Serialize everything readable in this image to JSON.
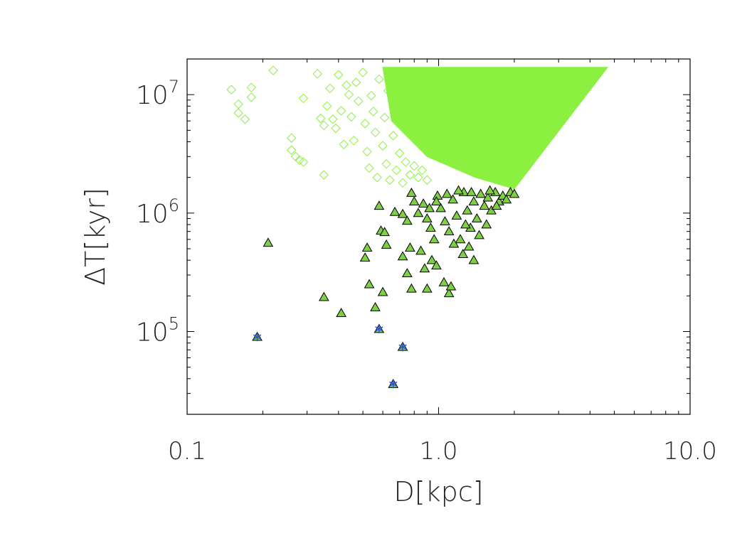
{
  "chart_data": {
    "type": "scatter",
    "title": "",
    "xlabel": "D[kpc]",
    "ylabel": "ΔT[kyr]",
    "xscale": "log",
    "yscale": "log",
    "xlim": [
      0.1,
      10.0
    ],
    "ylim": [
      20000,
      20000000
    ],
    "grid": false,
    "x_ticks": [
      {
        "value": 0.1,
        "label": "0.1"
      },
      {
        "value": 1.0,
        "label": "1.0"
      },
      {
        "value": 10.0,
        "label": "10.0"
      }
    ],
    "y_ticks": [
      {
        "value": 100000,
        "base": "10",
        "exp": "5"
      },
      {
        "value": 1000000,
        "base": "10",
        "exp": "6"
      },
      {
        "value": 10000000,
        "base": "10",
        "exp": "7"
      }
    ],
    "colors": {
      "diamond": "#8cf040",
      "triangle_fill": "#7fcf45",
      "triangle_edge": "#000000",
      "star": "#3050e0"
    },
    "dense_region": {
      "description_note": "solid band of overlapping green diamonds",
      "vertices": [
        [
          0.6,
          17000000
        ],
        [
          4.7,
          17000000
        ],
        [
          2.0,
          1600000
        ],
        [
          1.4,
          2000000
        ],
        [
          0.9,
          3000000
        ],
        [
          0.65,
          6000000
        ]
      ]
    },
    "series": [
      {
        "marker": "diamond",
        "points": [
          [
            0.15,
            11000000
          ],
          [
            0.16,
            8300000
          ],
          [
            0.16,
            7000000
          ],
          [
            0.17,
            6200000
          ],
          [
            0.18,
            9500000
          ],
          [
            0.18,
            11500000
          ],
          [
            0.22,
            16000000
          ],
          [
            0.26,
            4300000
          ],
          [
            0.26,
            3400000
          ],
          [
            0.27,
            3000000
          ],
          [
            0.28,
            2800000
          ],
          [
            0.29,
            2700000
          ],
          [
            0.29,
            9300000
          ],
          [
            0.33,
            15000000
          ],
          [
            0.34,
            6300000
          ],
          [
            0.35,
            5500000
          ],
          [
            0.35,
            2100000
          ],
          [
            0.36,
            8000000
          ],
          [
            0.37,
            11300000
          ],
          [
            0.38,
            6200000
          ],
          [
            0.39,
            5200000
          ],
          [
            0.4,
            14700000
          ],
          [
            0.41,
            7300000
          ],
          [
            0.42,
            3800000
          ],
          [
            0.43,
            12000000
          ],
          [
            0.44,
            10000000
          ],
          [
            0.45,
            6500000
          ],
          [
            0.46,
            4100000
          ],
          [
            0.47,
            12700000
          ],
          [
            0.48,
            8800000
          ],
          [
            0.5,
            15400000
          ],
          [
            0.51,
            5700000
          ],
          [
            0.52,
            3300000
          ],
          [
            0.53,
            2400000
          ],
          [
            0.54,
            9800000
          ],
          [
            0.55,
            7200000
          ],
          [
            0.56,
            4800000
          ],
          [
            0.57,
            2000000
          ],
          [
            0.58,
            13500000
          ],
          [
            0.6,
            3700000
          ],
          [
            0.61,
            6400000
          ],
          [
            0.62,
            2600000
          ],
          [
            0.63,
            10800000
          ],
          [
            0.64,
            1900000
          ],
          [
            0.66,
            4500000
          ],
          [
            0.68,
            2300000
          ],
          [
            0.7,
            3200000
          ],
          [
            0.72,
            1800000
          ],
          [
            0.74,
            2700000
          ],
          [
            0.77,
            2100000
          ],
          [
            0.8,
            2500000
          ],
          [
            0.83,
            2000000
          ],
          [
            0.86,
            2300000
          ],
          [
            0.9,
            1900000
          ]
        ]
      },
      {
        "marker": "triangle",
        "points": [
          [
            0.21,
            560000
          ],
          [
            0.35,
            195000
          ],
          [
            0.41,
            143000
          ],
          [
            0.52,
            510000
          ],
          [
            0.51,
            420000
          ],
          [
            0.53,
            250000
          ],
          [
            0.56,
            160000
          ],
          [
            0.58,
            1150000
          ],
          [
            0.59,
            710000
          ],
          [
            0.61,
            690000
          ],
          [
            0.62,
            540000
          ],
          [
            0.6,
            215000
          ],
          [
            0.67,
            1020000
          ],
          [
            0.72,
            980000
          ],
          [
            0.75,
            860000
          ],
          [
            0.77,
            510000
          ],
          [
            0.72,
            430000
          ],
          [
            0.75,
            310000
          ],
          [
            0.78,
            230000
          ],
          [
            0.8,
            1250000
          ],
          [
            0.78,
            1480000
          ],
          [
            0.85,
            480000
          ],
          [
            0.88,
            340000
          ],
          [
            0.9,
            230000
          ],
          [
            0.94,
            400000
          ],
          [
            0.98,
            360000
          ],
          [
            1.05,
            260000
          ],
          [
            1.1,
            210000
          ],
          [
            1.12,
            240000
          ],
          [
            0.83,
            1000000
          ],
          [
            0.87,
            1200000
          ],
          [
            0.9,
            900000
          ],
          [
            0.93,
            750000
          ],
          [
            0.96,
            600000
          ],
          [
            0.99,
            1400000
          ],
          [
            1.02,
            1100000
          ],
          [
            1.06,
            850000
          ],
          [
            1.1,
            700000
          ],
          [
            1.14,
            1300000
          ],
          [
            1.18,
            950000
          ],
          [
            1.22,
            600000
          ],
          [
            1.26,
            1500000
          ],
          [
            1.3,
            1050000
          ],
          [
            1.34,
            750000
          ],
          [
            1.38,
            1250000
          ],
          [
            1.42,
            900000
          ],
          [
            1.47,
            1450000
          ],
          [
            1.52,
            1150000
          ],
          [
            1.57,
            1350000
          ],
          [
            1.62,
            1050000
          ],
          [
            1.68,
            1500000
          ],
          [
            1.74,
            1250000
          ],
          [
            1.8,
            1400000
          ],
          [
            1.86,
            1300000
          ],
          [
            1.93,
            1500000
          ],
          [
            2.0,
            1450000
          ],
          [
            1.25,
            450000
          ],
          [
            1.32,
            520000
          ],
          [
            1.38,
            400000
          ],
          [
            1.15,
            550000
          ],
          [
            0.98,
            1250000
          ],
          [
            1.08,
            1450000
          ],
          [
            1.2,
            1550000
          ],
          [
            1.35,
            1500000
          ],
          [
            1.6,
            1550000
          ],
          [
            1.7,
            1150000
          ],
          [
            1.45,
            650000
          ],
          [
            1.55,
            800000
          ],
          [
            1.28,
            800000
          ],
          [
            0.92,
            1100000
          ]
        ]
      },
      {
        "marker": "star",
        "points": [
          [
            0.19,
            90000
          ],
          [
            0.58,
            105000
          ],
          [
            0.72,
            74000
          ],
          [
            0.66,
            36000
          ]
        ]
      }
    ]
  }
}
